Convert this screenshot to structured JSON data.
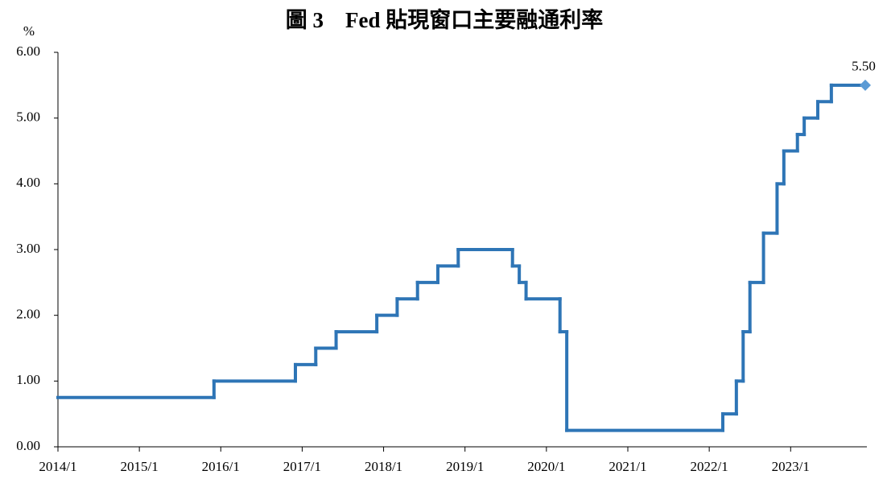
{
  "chart_data": {
    "type": "line",
    "step": true,
    "title": "圖 3　Fed 貼現窗口主要融通利率",
    "y_label": "%",
    "color": "#2e75b6",
    "marker_color": "#5b9bd5",
    "x": [
      "2014/1",
      "2015/12",
      "2016/12",
      "2017/3",
      "2017/6",
      "2017/12",
      "2018/3",
      "2018/6",
      "2018/9",
      "2018/12",
      "2019/8",
      "2019/9",
      "2019/10",
      "2020/3",
      "2020/4",
      "2022/3",
      "2022/5",
      "2022/6",
      "2022/7",
      "2022/9",
      "2022/11",
      "2022/12",
      "2023/2",
      "2023/3",
      "2023/5",
      "2023/7",
      "2023/12"
    ],
    "values": [
      0.75,
      1.0,
      1.25,
      1.5,
      1.75,
      2.0,
      2.25,
      2.5,
      2.75,
      3.0,
      2.75,
      2.5,
      2.25,
      1.75,
      0.25,
      0.5,
      1.0,
      1.75,
      2.5,
      3.25,
      4.0,
      4.5,
      4.75,
      5.0,
      5.25,
      5.5,
      5.5
    ],
    "value_labels": [
      null,
      null,
      null,
      null,
      null,
      null,
      null,
      null,
      null,
      null,
      null,
      null,
      null,
      null,
      null,
      null,
      null,
      null,
      null,
      null,
      null,
      null,
      null,
      null,
      null,
      null,
      "5.50"
    ],
    "xlim": [
      "2014/1",
      "2023/12"
    ],
    "xticks": [
      "2014/1",
      "2015/1",
      "2016/1",
      "2017/1",
      "2018/1",
      "2019/1",
      "2020/1",
      "2021/1",
      "2022/1",
      "2023/1"
    ],
    "ylim": [
      0,
      6
    ],
    "yticks": [
      {
        "value": 0,
        "label": "0.00"
      },
      {
        "value": 1,
        "label": "1.00"
      },
      {
        "value": 2,
        "label": "2.00"
      },
      {
        "value": 3,
        "label": "3.00"
      },
      {
        "value": 4,
        "label": "4.00"
      },
      {
        "value": 5,
        "label": "5.00"
      },
      {
        "value": 6,
        "label": "6.00"
      }
    ]
  }
}
